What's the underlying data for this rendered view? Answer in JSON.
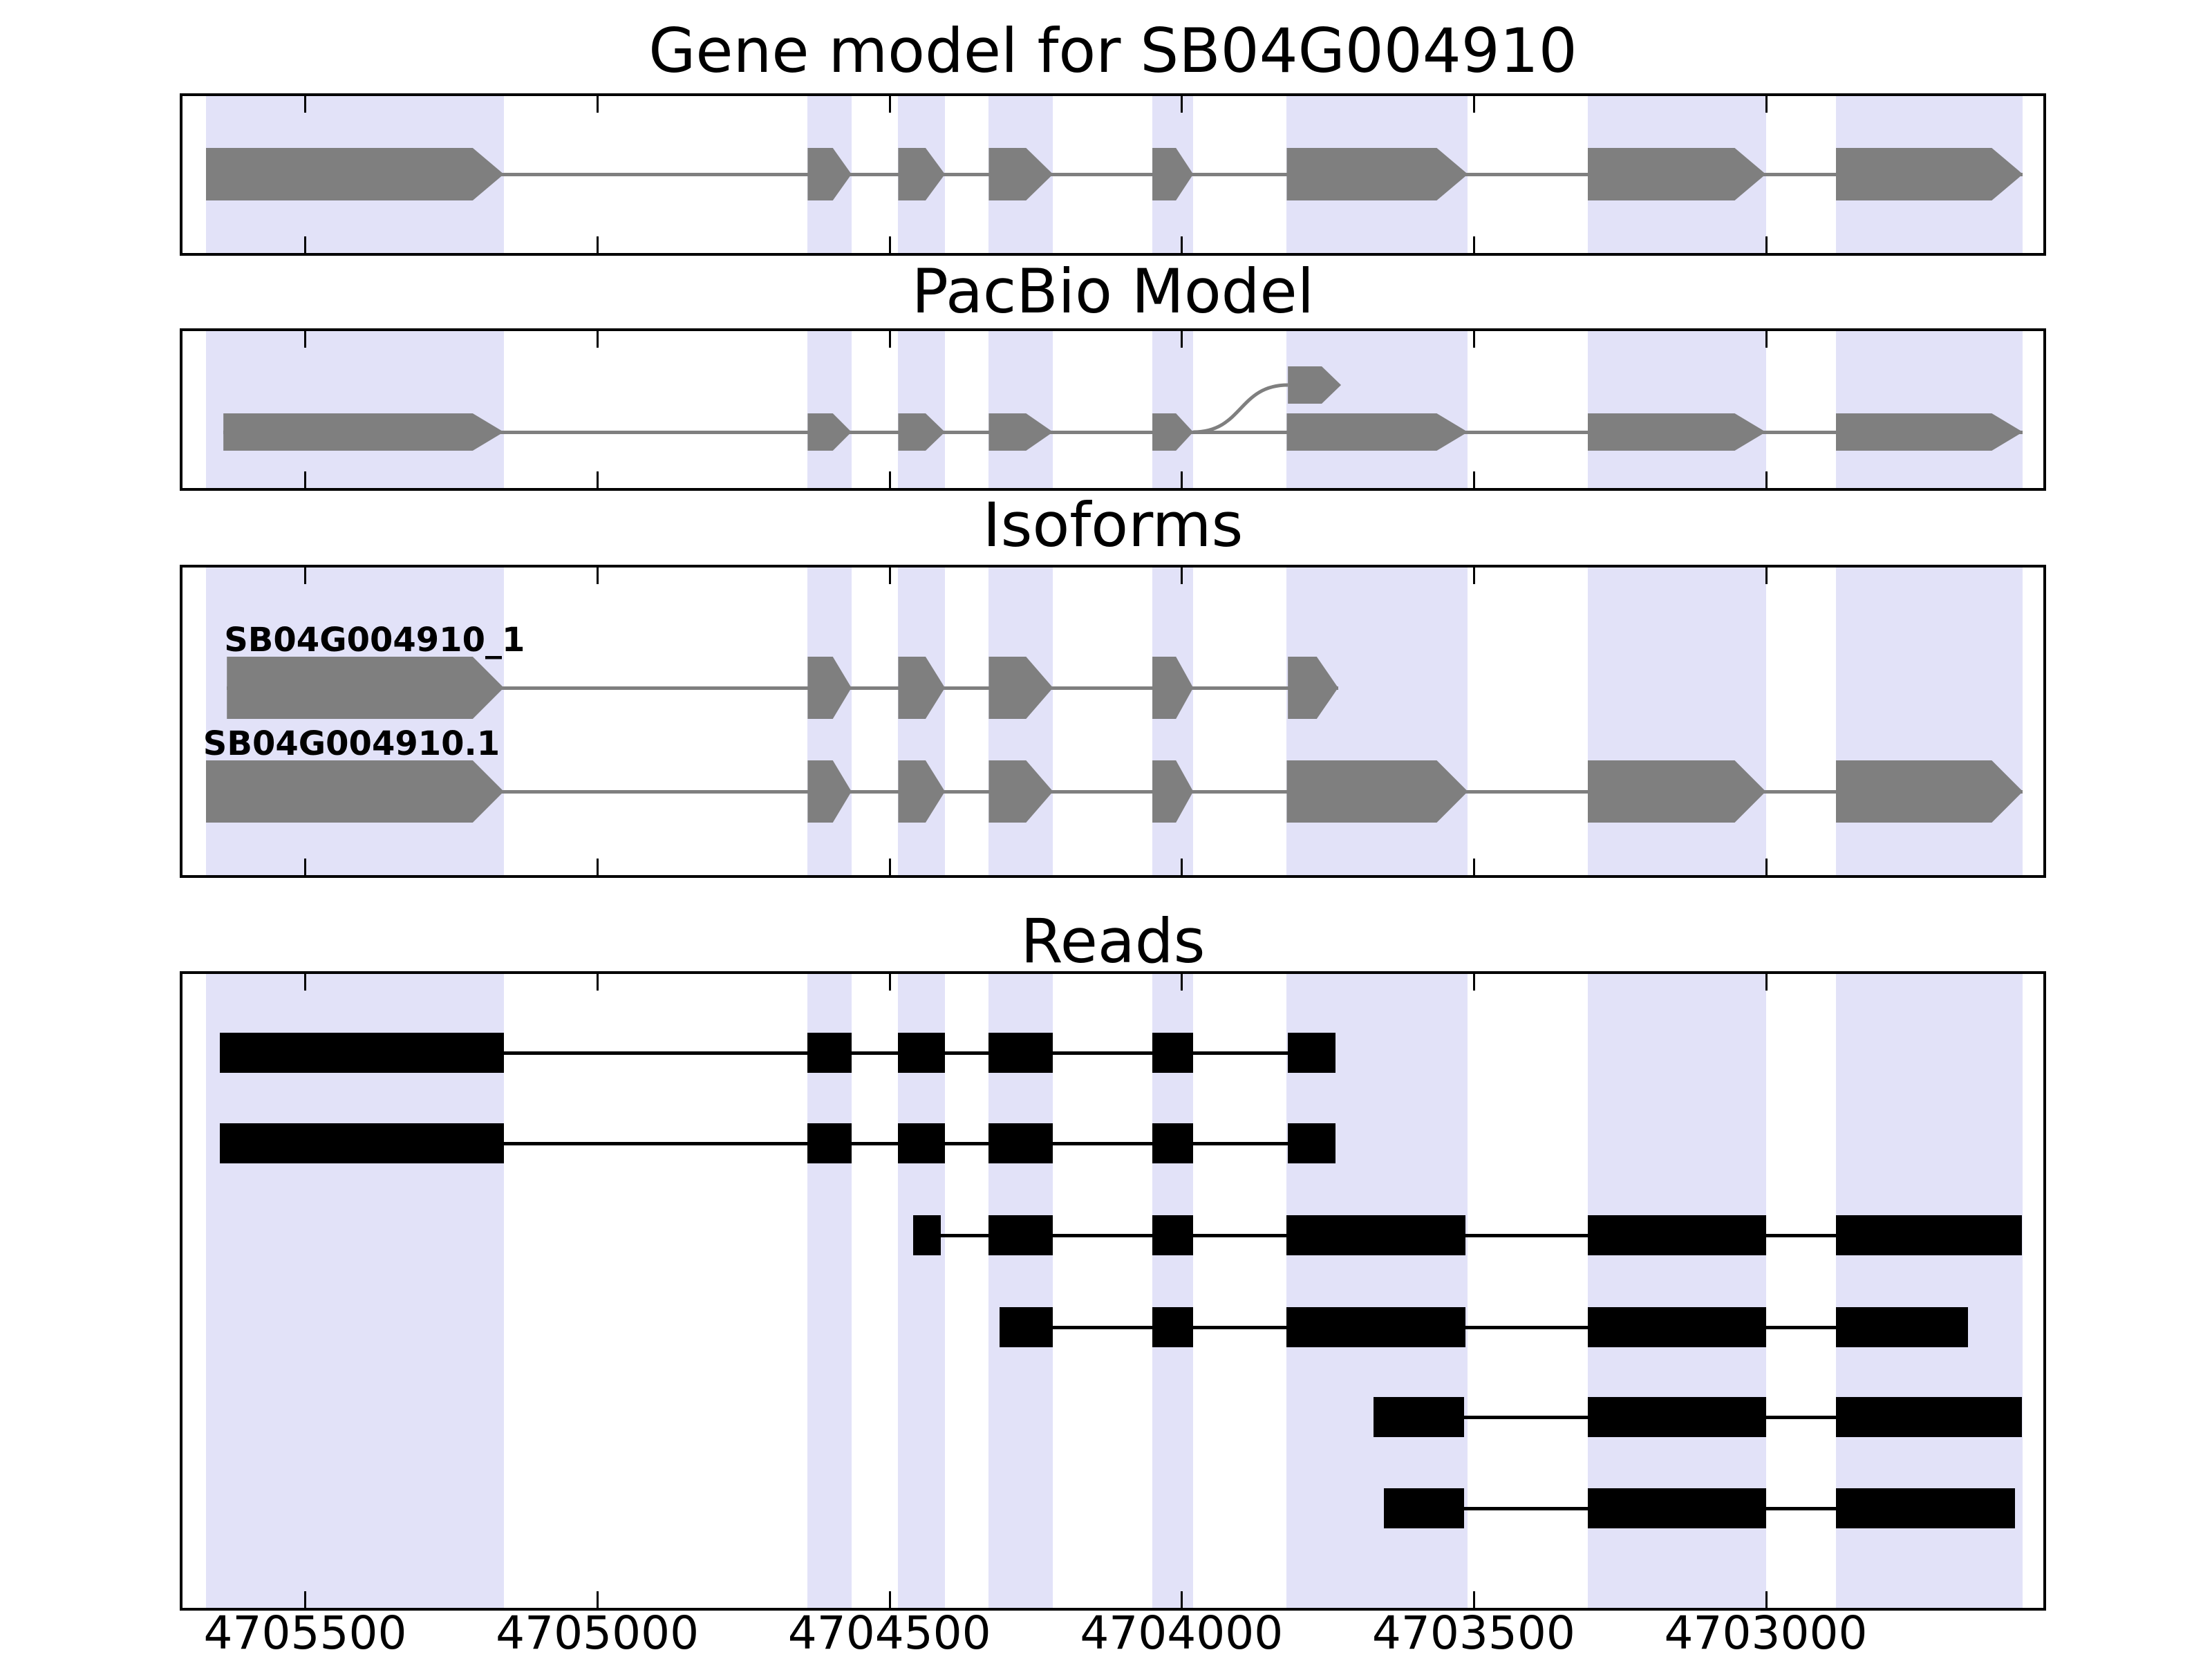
{
  "chart_data": {
    "type": "gene-model-tracks",
    "title": "Gene model for SB04G004910",
    "panel_titles": [
      "Gene model for SB04G004910",
      "PacBio Model",
      "Isoforms",
      "Reads"
    ],
    "x_axis": {
      "ticks": [
        4705500,
        4705000,
        4704500,
        4704000,
        4703500,
        4703000
      ],
      "domain": [
        4705710,
        4702525
      ],
      "direction": "decreasing",
      "unit": "bp"
    },
    "exon_highlight_regions": [
      {
        "from": 4705670,
        "to": 4705160
      },
      {
        "from": 4704640,
        "to": 4704565
      },
      {
        "from": 4704485,
        "to": 4704405
      },
      {
        "from": 4704330,
        "to": 4704220
      },
      {
        "from": 4704050,
        "to": 4703980
      },
      {
        "from": 4703820,
        "to": 4703510
      },
      {
        "from": 4703305,
        "to": 4703000
      },
      {
        "from": 4702880,
        "to": 4702560
      }
    ],
    "tracks": {
      "gene_model": {
        "style": "arrow",
        "exons": [
          [
            4705670,
            4705160
          ],
          [
            4704640,
            4704565
          ],
          [
            4704485,
            4704405
          ],
          [
            4704330,
            4704220
          ],
          [
            4704050,
            4703980
          ],
          [
            4703820,
            4703510
          ],
          [
            4703305,
            4703000
          ],
          [
            4702880,
            4702560
          ]
        ]
      },
      "pacbio": {
        "style": "arrow",
        "exons": [
          [
            4705640,
            4705160
          ],
          [
            4704640,
            4704565
          ],
          [
            4704485,
            4704405
          ],
          [
            4704330,
            4704220
          ],
          [
            4704050,
            4703980
          ],
          [
            4703820,
            4703510
          ],
          [
            4703305,
            4703000
          ],
          [
            4702880,
            4702560
          ]
        ],
        "alt_terminal_exon": [
          4703818,
          4703727
        ],
        "splice_curve": {
          "from": 4703980,
          "to": 4703818
        }
      },
      "isoforms": [
        {
          "label": "SB04G004910_1",
          "exons": [
            [
              4705634,
              4705160
            ],
            [
              4704640,
              4704565
            ],
            [
              4704485,
              4704405
            ],
            [
              4704330,
              4704220
            ],
            [
              4704050,
              4703980
            ],
            [
              4703818,
              4703732
            ]
          ]
        },
        {
          "label": "SB04G004910.1",
          "exons": [
            [
              4705670,
              4705160
            ],
            [
              4704640,
              4704565
            ],
            [
              4704485,
              4704405
            ],
            [
              4704330,
              4704220
            ],
            [
              4704050,
              4703980
            ],
            [
              4703820,
              4703510
            ],
            [
              4703305,
              4703000
            ],
            [
              4702880,
              4702560
            ]
          ]
        }
      ],
      "reads": [
        {
          "exons": [
            [
              4705646,
              4705160
            ],
            [
              4704640,
              4704565
            ],
            [
              4704485,
              4704405
            ],
            [
              4704330,
              4704220
            ],
            [
              4704050,
              4703980
            ],
            [
              4703818,
              4703736
            ]
          ]
        },
        {
          "exons": [
            [
              4705646,
              4705160
            ],
            [
              4704640,
              4704565
            ],
            [
              4704485,
              4704405
            ],
            [
              4704330,
              4704220
            ],
            [
              4704050,
              4703980
            ],
            [
              4703818,
              4703736
            ]
          ]
        },
        {
          "exons": [
            [
              4704459,
              4704412
            ],
            [
              4704330,
              4704220
            ],
            [
              4704050,
              4703980
            ],
            [
              4703820,
              4703514
            ],
            [
              4703305,
              4703000
            ],
            [
              4702880,
              4702562
            ]
          ]
        },
        {
          "exons": [
            [
              4704311,
              4704221
            ],
            [
              4704050,
              4703980
            ],
            [
              4703820,
              4703514
            ],
            [
              4703305,
              4703000
            ],
            [
              4702880,
              4702654
            ]
          ]
        },
        {
          "exons": [
            [
              4703671,
              4703517
            ],
            [
              4703305,
              4703000
            ],
            [
              4702880,
              4702562
            ]
          ]
        },
        {
          "exons": [
            [
              4703654,
              4703517
            ],
            [
              4703305,
              4703000
            ],
            [
              4702880,
              4702574
            ]
          ]
        }
      ]
    },
    "colors": {
      "highlight": "#e2e2f8",
      "model": "#7f7f7f",
      "read": "#000000",
      "text": "#000000",
      "background": "#ffffff"
    }
  }
}
